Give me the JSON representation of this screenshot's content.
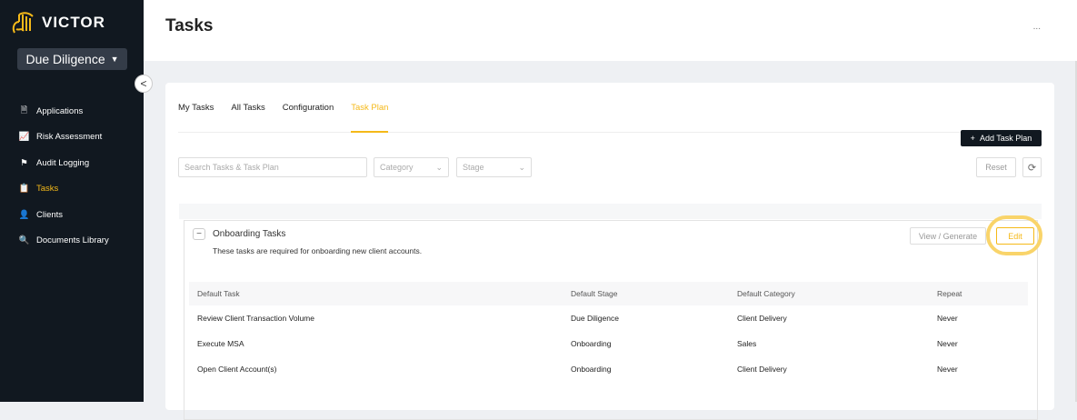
{
  "brand": {
    "name": "VICTOR",
    "accent": "#f5b919"
  },
  "workspace": {
    "selected": "Due Diligence"
  },
  "sidebar": {
    "items": [
      {
        "label": "Applications",
        "icon": "document-icon"
      },
      {
        "label": "Risk Assessment",
        "icon": "presentation-chart-icon"
      },
      {
        "label": "Audit Logging",
        "icon": "flag-icon"
      },
      {
        "label": "Tasks",
        "icon": "clipboard-icon",
        "active": true
      },
      {
        "label": "Clients",
        "icon": "user-icon"
      },
      {
        "label": "Documents Library",
        "icon": "document-search-icon"
      }
    ]
  },
  "header": {
    "title": "Tasks",
    "more": "..."
  },
  "tabs": [
    {
      "label": "My Tasks"
    },
    {
      "label": "All Tasks"
    },
    {
      "label": "Configuration"
    },
    {
      "label": "Task Plan",
      "active": true
    }
  ],
  "toolbar": {
    "add_label": "Add Task Plan",
    "search_placeholder": "Search Tasks & Task Plan",
    "category_placeholder": "Category",
    "stage_placeholder": "Stage",
    "reset_label": "Reset"
  },
  "group": {
    "title": "Onboarding Tasks",
    "description": "These tasks are required for onboarding new client accounts.",
    "view_label": "View / Generate",
    "edit_label": "Edit",
    "columns": [
      "Default Task",
      "Default Stage",
      "Default Category",
      "Repeat"
    ],
    "rows": [
      [
        "Review Client Transaction Volume",
        "Due Diligence",
        "Client Delivery",
        "Never"
      ],
      [
        "Execute MSA",
        "Onboarding",
        "Sales",
        "Never"
      ],
      [
        "Open Client Account(s)",
        "Onboarding",
        "Client Delivery",
        "Never"
      ]
    ]
  }
}
